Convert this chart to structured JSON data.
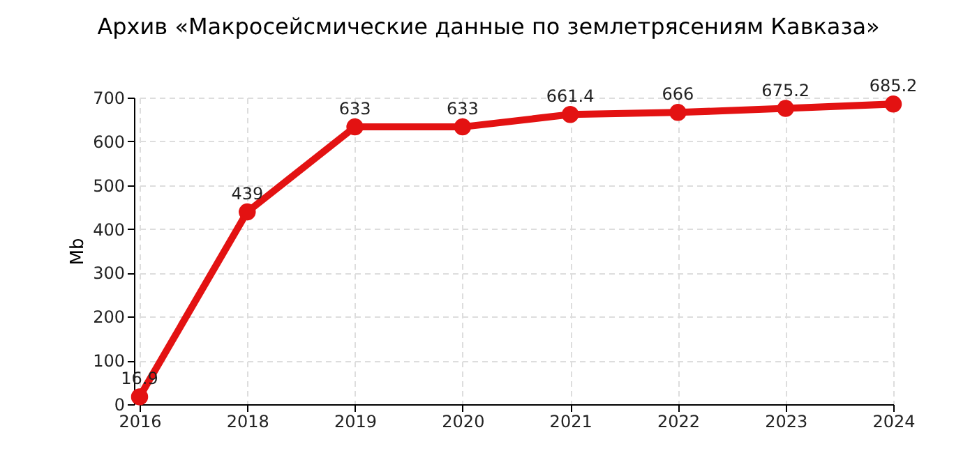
{
  "chart_data": {
    "type": "line",
    "title": "Архив «Макросейсмические данные по землетрясениям Кавказа»",
    "ylabel": "Mb",
    "categories": [
      "2016",
      "2018",
      "2019",
      "2020",
      "2021",
      "2022",
      "2023",
      "2024"
    ],
    "series": [
      {
        "color": "#e31212",
        "values": [
          16.9,
          439,
          633,
          633,
          661.4,
          666,
          675.2,
          685.2
        ]
      }
    ],
    "ylim": [
      0,
      700
    ],
    "yticks": [
      0,
      100,
      200,
      300,
      400,
      500,
      600,
      700
    ],
    "grid": true,
    "marker": "circle",
    "line_style": "solid",
    "data_labels": true,
    "legend": false
  }
}
